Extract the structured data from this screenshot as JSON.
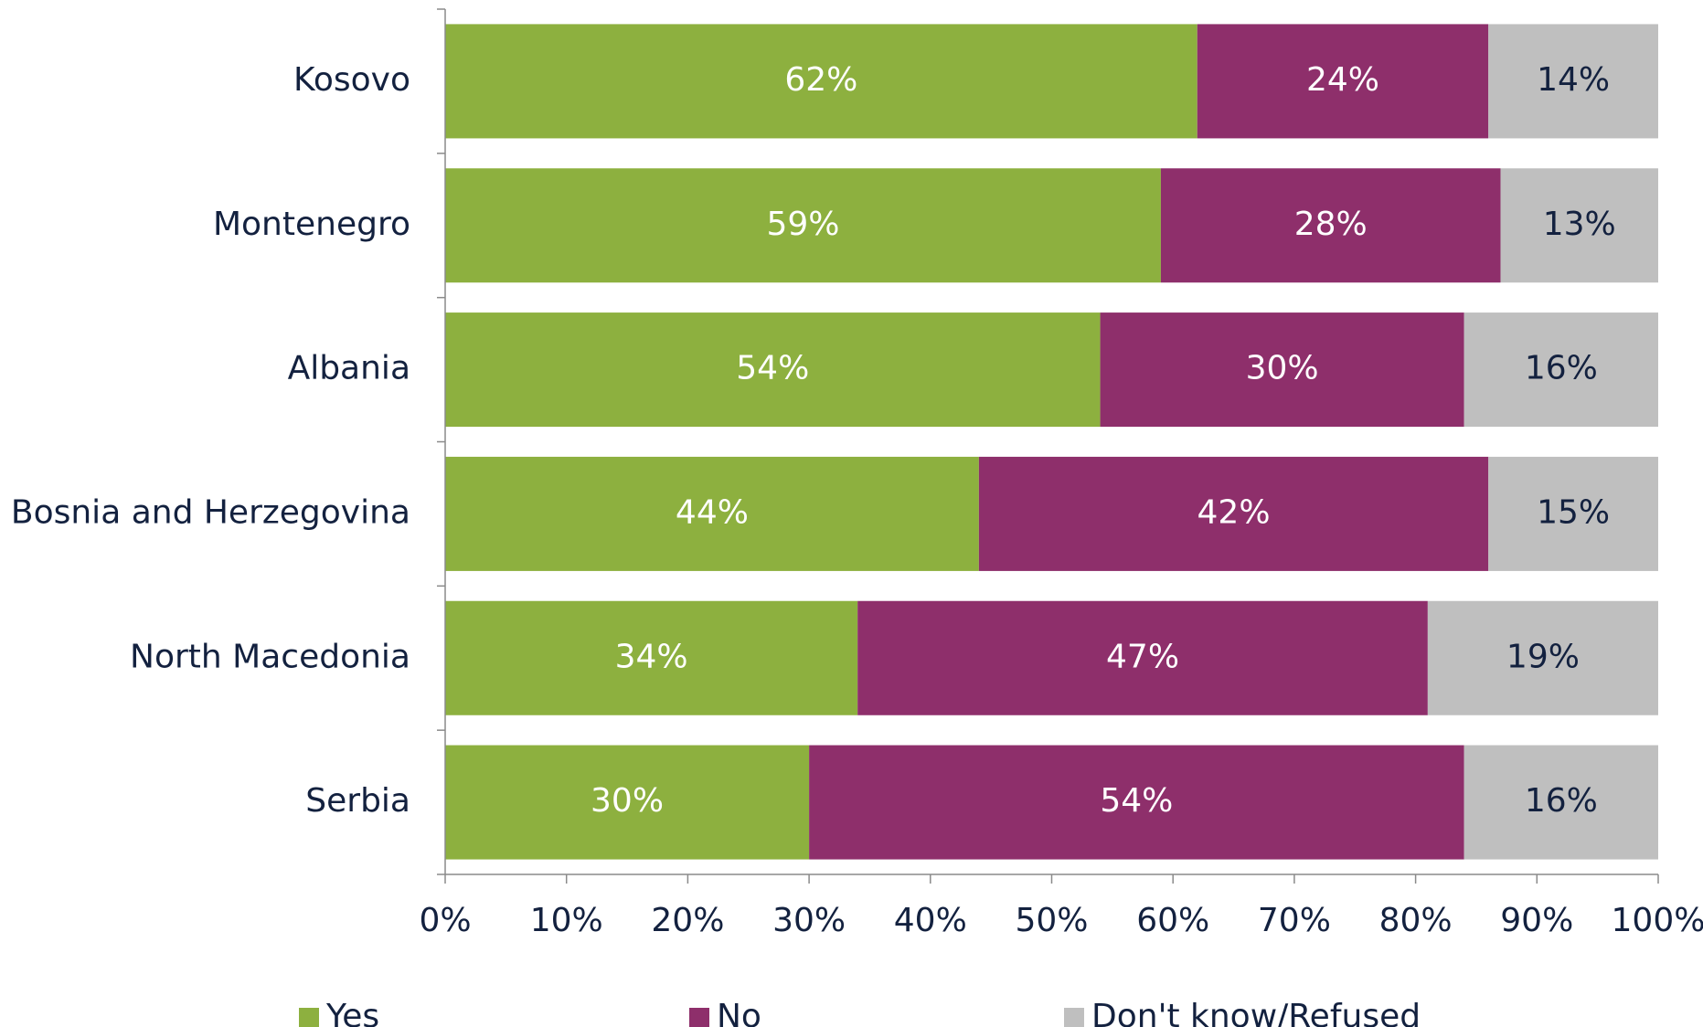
{
  "chart_data": {
    "type": "stacked-bar-horizontal",
    "categories": [
      "Kosovo",
      "Montenegro",
      "Albania",
      "Bosnia and Herzegovina",
      "North Macedonia",
      "Serbia"
    ],
    "series": [
      {
        "name": "Yes",
        "color": "#8db03f",
        "values": [
          62,
          59,
          54,
          44,
          34,
          30
        ],
        "value_labels": [
          "62%",
          "59%",
          "54%",
          "44%",
          "34%",
          "30%"
        ]
      },
      {
        "name": "No",
        "color": "#8e2f6b",
        "values": [
          24,
          28,
          30,
          42,
          47,
          54
        ],
        "value_labels": [
          "24%",
          "28%",
          "30%",
          "42%",
          "47%",
          "54%"
        ]
      },
      {
        "name": "Don't know/Refused",
        "color": "#bfbfbf",
        "values": [
          14,
          13,
          16,
          15,
          19,
          16
        ],
        "value_labels": [
          "14%",
          "13%",
          "16%",
          "15%",
          "19%",
          "16%"
        ]
      }
    ],
    "xlim": [
      0,
      100
    ],
    "xticks": [
      {
        "value": 0,
        "label": "0%"
      },
      {
        "value": 10,
        "label": "10%"
      },
      {
        "value": 20,
        "label": "20%"
      },
      {
        "value": 30,
        "label": "30%"
      },
      {
        "value": 40,
        "label": "40%"
      },
      {
        "value": 50,
        "label": "50%"
      },
      {
        "value": 60,
        "label": "60%"
      },
      {
        "value": 70,
        "label": "70%"
      },
      {
        "value": 80,
        "label": "80%"
      },
      {
        "value": 90,
        "label": "90%"
      },
      {
        "value": 100,
        "label": "100%"
      }
    ],
    "legend": "bottom"
  }
}
